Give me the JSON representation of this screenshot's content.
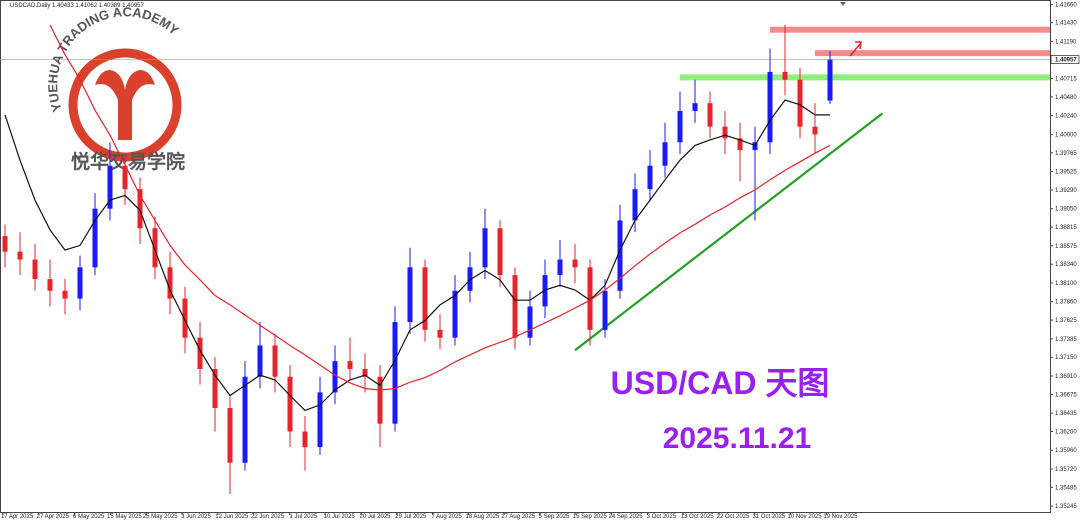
{
  "chart_data": {
    "type": "candlestick",
    "symbol": "USDCAD,Daily",
    "title": "USD/CAD 天图",
    "date": "2025.11.21",
    "watermark": {
      "name": "YUEHUA TRADING ACADEMY",
      "name_cn": "悦华交易学院",
      "color": "#d9412c"
    },
    "title_color": "#9a1ff2",
    "up_color": "#1a1aff",
    "down_color": "#e8232a",
    "open": [
      1.387,
      1.385,
      1.384,
      1.3815,
      1.38,
      1.379,
      1.383,
      1.3905,
      1.396,
      1.393,
      1.388,
      1.383,
      1.379,
      1.374,
      1.37,
      1.365,
      1.358,
      1.369,
      1.373,
      1.369,
      1.362,
      1.36,
      1.367,
      1.371,
      1.37,
      1.369,
      1.363,
      1.376,
      1.383,
      1.375,
      1.374,
      1.38,
      1.383,
      1.388,
      1.382,
      1.374,
      1.378,
      1.382,
      1.384,
      1.383,
      1.375,
      1.38,
      1.389,
      1.393,
      1.396,
      1.399,
      1.403,
      1.404,
      1.401,
      1.3995,
      1.398,
      1.399,
      1.408,
      1.407,
      1.401,
      1.40433
    ],
    "high": [
      1.3885,
      1.3875,
      1.386,
      1.384,
      1.3815,
      1.3845,
      1.3925,
      1.399,
      1.3975,
      1.3945,
      1.3895,
      1.385,
      1.3805,
      1.376,
      1.3715,
      1.3665,
      1.371,
      1.376,
      1.3745,
      1.3705,
      1.364,
      1.369,
      1.373,
      1.374,
      1.372,
      1.3705,
      1.378,
      1.3855,
      1.384,
      1.377,
      1.382,
      1.385,
      1.3905,
      1.389,
      1.383,
      1.38,
      1.384,
      1.3865,
      1.386,
      1.384,
      1.3815,
      1.391,
      1.395,
      1.398,
      1.4015,
      1.4055,
      1.407,
      1.4055,
      1.403,
      1.4015,
      1.401,
      1.411,
      1.414,
      1.4085,
      1.404,
      1.41062
    ],
    "low": [
      1.383,
      1.382,
      1.38,
      1.378,
      1.377,
      1.3775,
      1.382,
      1.389,
      1.391,
      1.386,
      1.3815,
      1.377,
      1.372,
      1.368,
      1.362,
      1.354,
      1.357,
      1.3675,
      1.367,
      1.36,
      1.357,
      1.359,
      1.3655,
      1.3685,
      1.367,
      1.36,
      1.362,
      1.3745,
      1.3735,
      1.3725,
      1.373,
      1.3785,
      1.3815,
      1.3805,
      1.3725,
      1.373,
      1.3765,
      1.3805,
      1.381,
      1.373,
      1.374,
      1.379,
      1.3875,
      1.3915,
      1.3945,
      1.3975,
      1.4015,
      1.3995,
      1.3975,
      1.394,
      1.389,
      1.3975,
      1.405,
      1.3995,
      1.3975,
      1.40389
    ],
    "close": [
      1.385,
      1.384,
      1.3815,
      1.38,
      1.379,
      1.383,
      1.3905,
      1.396,
      1.393,
      1.388,
      1.383,
      1.379,
      1.374,
      1.37,
      1.365,
      1.358,
      1.369,
      1.373,
      1.369,
      1.362,
      1.36,
      1.367,
      1.371,
      1.37,
      1.369,
      1.363,
      1.376,
      1.383,
      1.375,
      1.374,
      1.38,
      1.383,
      1.388,
      1.382,
      1.374,
      1.378,
      1.382,
      1.384,
      1.383,
      1.375,
      1.38,
      1.389,
      1.393,
      1.396,
      1.399,
      1.403,
      1.404,
      1.401,
      1.3995,
      1.398,
      1.399,
      1.408,
      1.407,
      1.401,
      1.4,
      1.40957
    ],
    "series": [
      {
        "color": "#111111",
        "values": [
          1.4025,
          1.3967,
          1.3916,
          1.3878,
          1.3852,
          1.3858,
          1.389,
          1.3916,
          1.3922,
          1.3903,
          1.3852,
          1.3801,
          1.3762,
          1.3724,
          1.3692,
          1.3666,
          1.3679,
          1.3692,
          1.3686,
          1.3666,
          1.3647,
          1.3654,
          1.3673,
          1.3686,
          1.3692,
          1.3679,
          1.3711,
          1.375,
          1.3762,
          1.3782,
          1.3794,
          1.3814,
          1.3826,
          1.3814,
          1.3788,
          1.3788,
          1.3801,
          1.3807,
          1.3801,
          1.3788,
          1.3807,
          1.3852,
          1.389,
          1.3916,
          1.3942,
          1.3967,
          1.3986,
          1.3993,
          1.3999,
          1.3993,
          1.3986,
          1.4018,
          1.4044,
          1.4038,
          1.4025,
          1.4025
        ]
      },
      {
        "color": "#e8232a",
        "values": [
          null,
          null,
          null,
          1.414,
          1.4102,
          1.407,
          1.4031,
          1.3999,
          1.3961,
          1.3922,
          1.389,
          1.3858,
          1.3833,
          1.3814,
          1.3794,
          1.3782,
          1.3769,
          1.3756,
          1.3743,
          1.373,
          1.3718,
          1.3705,
          1.3692,
          1.3682,
          1.3675,
          1.3673,
          1.3675,
          1.3683,
          1.3689,
          1.3698,
          1.3709,
          1.3718,
          1.3727,
          1.3734,
          1.3741,
          1.375,
          1.3759,
          1.3768,
          1.3778,
          1.3788,
          1.3801,
          1.3816,
          1.3832,
          1.3847,
          1.3861,
          1.3874,
          1.3885,
          1.3897,
          1.3907,
          1.3919,
          1.3929,
          1.3942,
          1.3954,
          1.3965,
          1.3976,
          1.3986
        ]
      }
    ],
    "levels": [
      {
        "price": 1.4134,
        "from": 51,
        "color": "#f58a8a"
      },
      {
        "price": 1.4104,
        "from": 54,
        "color": "#f58a8a"
      },
      {
        "price": 1.4073,
        "from": 45,
        "color": "#8ef07a"
      }
    ],
    "trendline": {
      "start": {
        "index": 38,
        "price": 1.3724
      },
      "end": {
        "index": 58.5,
        "price": 1.4027
      },
      "color": "#22a022"
    },
    "ylim": [
      1.3517,
      1.4172
    ],
    "yticks": [
      {
        "value": 1.4166,
        "label": "1.41660"
      },
      {
        "value": 1.4143,
        "label": "1.41430"
      },
      {
        "value": 1.4119,
        "label": "1.41190"
      },
      1.40715,
      {
        "value": 1.4048,
        "label": "1.40480"
      },
      {
        "value": 1.4024,
        "label": "1.40240"
      },
      {
        "value": 1.4,
        "label": "1.40000"
      },
      1.39765,
      1.39525,
      {
        "value": 1.3929,
        "label": "1.39290"
      },
      {
        "value": 1.3905,
        "label": "1.39050"
      },
      1.38815,
      1.38575,
      {
        "value": 1.3834,
        "label": "1.38340"
      },
      {
        "value": 1.381,
        "label": "1.38100"
      },
      {
        "value": 1.3786,
        "label": "1.37860"
      },
      1.37625,
      1.37385,
      {
        "value": 1.3715,
        "label": "1.37150"
      },
      {
        "value": 1.3691,
        "label": "1.36910"
      },
      1.36675,
      1.36435,
      {
        "value": 1.362,
        "label": "1.36200"
      },
      {
        "value": 1.3596,
        "label": "1.35960"
      },
      {
        "value": 1.3572,
        "label": "1.35720"
      },
      1.35485,
      1.35245
    ],
    "x_labels": [
      "17 Apr 2025",
      "27 Apr 2025",
      "6 May 2025",
      "15 May 2025",
      "25 May 2025",
      "3 Jun 2025",
      "12 Jun 2025",
      "22 Jun 2025",
      "1 Jul 2025",
      "10 Jul 2025",
      "20 Jul 2025",
      "29 Jul 2025",
      "7 Aug 2025",
      "18 Aug 2025",
      "27 Aug 2025",
      "5 Sep 2025",
      "15 Sep 2025",
      "24 Sep 2025",
      "3 Oct 2025",
      "13 Oct 2025",
      "22 Oct 2025",
      "31 Oct 2025",
      "10 Nov 2025",
      "19 Nov 2025"
    ]
  }
}
